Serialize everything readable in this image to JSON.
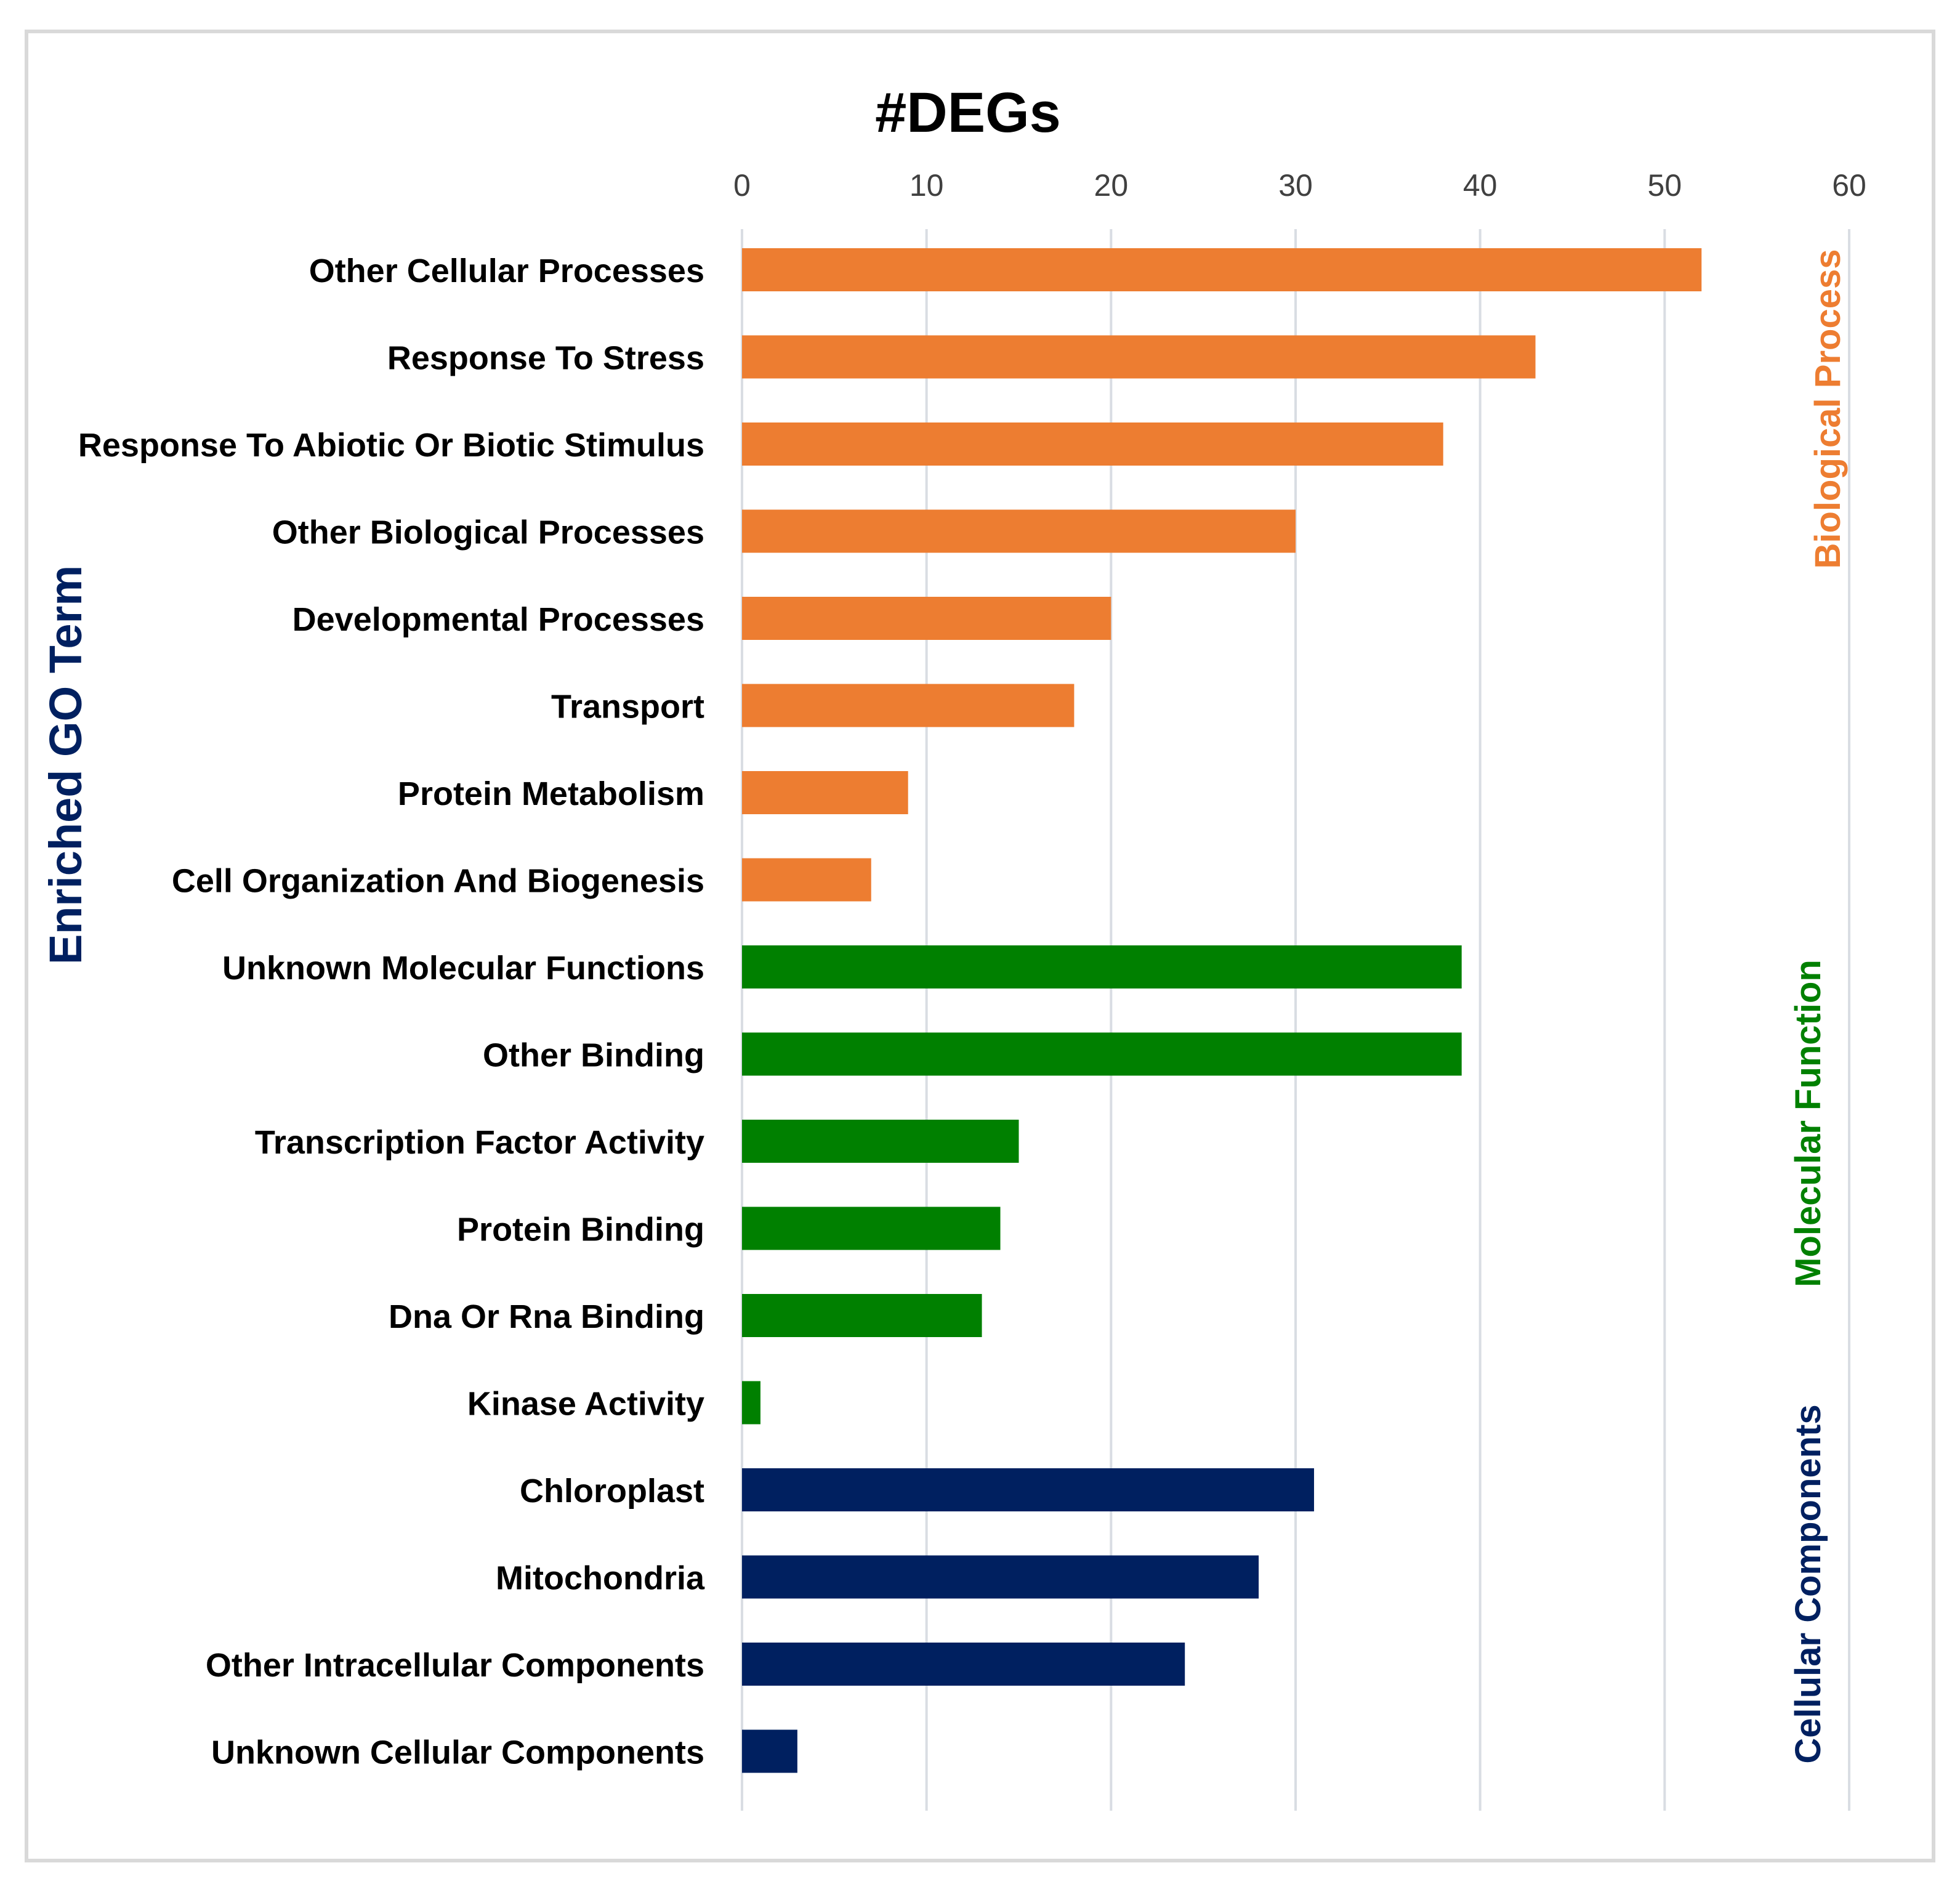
{
  "chart_data": {
    "type": "bar",
    "orientation": "horizontal",
    "title": "#DEGs",
    "xlabel": "#DEGs",
    "ylabel": "Enriched GO Term",
    "xlim": [
      0,
      60
    ],
    "xticks": [
      0,
      10,
      20,
      30,
      40,
      50,
      60
    ],
    "xaxis_position": "top",
    "grid": true,
    "categories": [
      "Other Cellular Processes",
      "Response To Stress",
      "Response To Abiotic Or Biotic Stimulus",
      "Other Biological Processes",
      "Developmental Processes",
      "Transport",
      "Protein Metabolism",
      "Cell Organization And Biogenesis",
      "Unknown Molecular Functions",
      "Other Binding",
      "Transcription Factor Activity",
      "Protein Binding",
      "Dna Or Rna Binding",
      "Kinase Activity",
      "Chloroplast",
      "Mitochondria",
      "Other Intracellular Components",
      "Unknown Cellular Components"
    ],
    "values": [
      52,
      43,
      38,
      30,
      20,
      18,
      9,
      7,
      39,
      39,
      15,
      14,
      13,
      1,
      31,
      28,
      24,
      3
    ],
    "groups": [
      {
        "name": "Biological Process",
        "color": "#ED7D31",
        "start": 0,
        "count": 8
      },
      {
        "name": "Molecular Function",
        "color": "#008000",
        "start": 8,
        "count": 6
      },
      {
        "name": "Cellular Components",
        "color": "#002060",
        "start": 14,
        "count": 4
      }
    ],
    "title_color": "#000000",
    "ylabel_color": "#002060",
    "grid_color": "#D9DDE3"
  }
}
